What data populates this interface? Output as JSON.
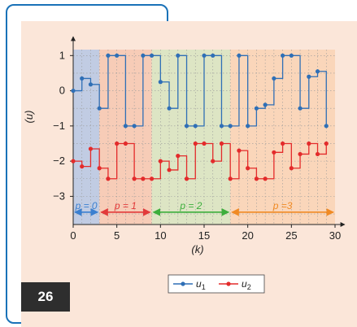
{
  "badge": {
    "page_number": "26"
  },
  "colors": {
    "panel": "#fbe6d9",
    "frame": "#1a72b8",
    "series_u1": "#2f6fb6",
    "series_u2": "#e32b2b",
    "region_p0": "#b6c7e4",
    "region_p1": "#f6c7b0",
    "region_p2": "#d7e4c0",
    "region_p3": "#f9d2b4",
    "arrow_p0": "#3a7fd0",
    "arrow_p1": "#e23a3a",
    "arrow_p2": "#3cae3c",
    "arrow_p3": "#f08a24"
  },
  "chart_data": {
    "type": "line",
    "step": true,
    "xlabel": "(k)",
    "ylabel": "(u)",
    "xlim": [
      0,
      30
    ],
    "ylim": [
      -3.8,
      1.4
    ],
    "xticks": [
      "0",
      "5",
      "10",
      "15",
      "20",
      "25",
      "30"
    ],
    "xtick_values": [
      0,
      5,
      10,
      15,
      20,
      25,
      30
    ],
    "yticks": [
      "1",
      "0",
      "−1",
      "−2",
      "−3"
    ],
    "ytick_values": [
      1,
      0,
      -1,
      -2,
      -3
    ],
    "grid": true,
    "legend": "bottom-center",
    "regions": [
      {
        "label": "p = 0",
        "from": 0,
        "to": 3
      },
      {
        "label": "p = 1",
        "from": 3,
        "to": 9
      },
      {
        "label": "p = 2",
        "from": 9,
        "to": 18
      },
      {
        "label": "p =3",
        "from": 18,
        "to": 30
      }
    ],
    "series": [
      {
        "name": "u1",
        "x": [
          0,
          1,
          2,
          3,
          4,
          5,
          6,
          7,
          8,
          9,
          10,
          11,
          12,
          13,
          14,
          15,
          16,
          17,
          18,
          19,
          20,
          21,
          22,
          23,
          24,
          25,
          26,
          27,
          28,
          29
        ],
        "values": [
          0,
          0.35,
          0.18,
          -0.5,
          1,
          1,
          -1,
          -1,
          1,
          1,
          0.25,
          -0.5,
          1,
          -1,
          -1,
          1,
          1,
          -1,
          -1,
          1,
          -1,
          -0.5,
          -0.4,
          0.35,
          1,
          1,
          -0.5,
          0.4,
          0.55,
          -1
        ]
      },
      {
        "name": "u2",
        "x": [
          0,
          1,
          2,
          3,
          4,
          5,
          6,
          7,
          8,
          9,
          10,
          11,
          12,
          13,
          14,
          15,
          16,
          17,
          18,
          19,
          20,
          21,
          22,
          23,
          24,
          25,
          26,
          27,
          28,
          29
        ],
        "values": [
          -2,
          -2.15,
          -1.65,
          -2.2,
          -2.5,
          -1.5,
          -1.5,
          -2.5,
          -2.5,
          -2.5,
          -2,
          -2.25,
          -1.85,
          -2.5,
          -1.5,
          -1.5,
          -2,
          -1.5,
          -2.5,
          -1.7,
          -2.2,
          -2.5,
          -2.5,
          -1.75,
          -1.5,
          -2.2,
          -1.8,
          -1.5,
          -1.8,
          -1.5
        ]
      }
    ]
  }
}
